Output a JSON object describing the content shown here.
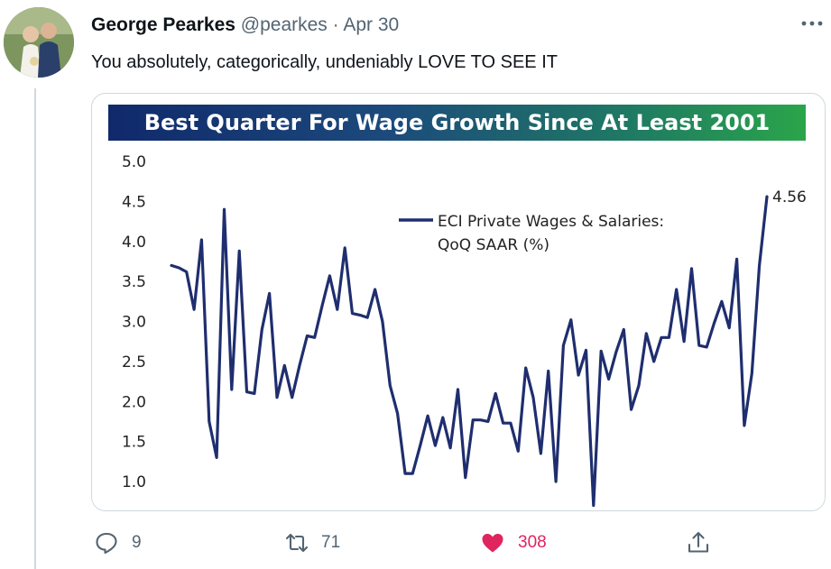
{
  "tweet": {
    "author_name": "George Pearkes",
    "handle": "@pearkes",
    "separator": "·",
    "date": "Apr 30",
    "text": "You absolutely, categorically, undeniably LOVE TO SEE IT",
    "more_icon": "more-horizontal-icon"
  },
  "actions": {
    "reply_count": "9",
    "retweet_count": "71",
    "like_count": "308",
    "reply_icon": "reply-icon",
    "retweet_icon": "retweet-icon",
    "like_icon": "heart-icon",
    "share_icon": "share-icon",
    "like_color": "#e0245e"
  },
  "chart_data": {
    "type": "line",
    "title": "Best Quarter For Wage Growth Since At Least 2001",
    "series": [
      {
        "name": "ECI Private Wages & Salaries: QoQ SAAR (%)",
        "color": "#1f2e6e",
        "values": [
          3.7,
          3.67,
          3.62,
          3.15,
          4.02,
          1.75,
          1.3,
          4.4,
          2.15,
          3.88,
          2.12,
          2.1,
          2.9,
          3.35,
          2.05,
          2.45,
          2.05,
          2.45,
          2.82,
          2.8,
          3.2,
          3.57,
          3.15,
          3.92,
          3.1,
          3.08,
          3.05,
          3.4,
          3.0,
          2.2,
          1.85,
          1.1,
          1.1,
          1.45,
          1.82,
          1.45,
          1.8,
          1.42,
          2.15,
          1.05,
          1.77,
          1.77,
          1.75,
          2.1,
          1.73,
          1.73,
          1.38,
          2.42,
          2.05,
          1.35,
          2.38,
          1.0,
          2.7,
          3.02,
          2.33,
          2.64,
          0.7,
          2.63,
          2.28,
          2.62,
          2.9,
          1.9,
          2.2,
          2.85,
          2.5,
          2.8,
          2.8,
          3.4,
          2.75,
          3.66,
          2.7,
          2.68,
          2.98,
          3.25,
          2.92,
          3.78,
          1.7,
          2.35,
          3.7,
          4.56
        ]
      }
    ],
    "yticks": [
      "5.0",
      "4.5",
      "4.0",
      "3.5",
      "3.0",
      "2.5",
      "2.0",
      "1.5",
      "1.0"
    ],
    "ylim": [
      0.7,
      5.0
    ],
    "last_value_label": "4.56",
    "legend_label_line1": "ECI Private Wages & Salaries:",
    "legend_label_line2": "QoQ SAAR (%)",
    "legend_position": "top-center",
    "grid": false
  }
}
